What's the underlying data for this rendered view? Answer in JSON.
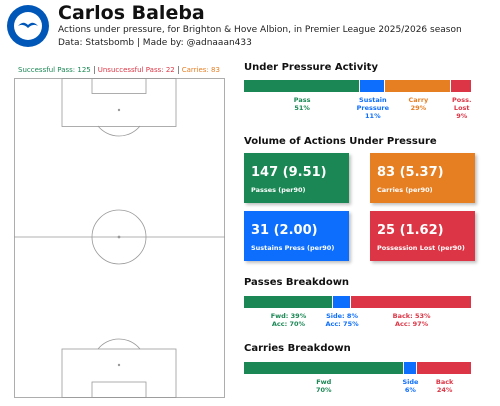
{
  "header": {
    "title": "Carlos Baleba",
    "subtitle": "Actions under pressure, for Brighton & Hove Albion, in Premier League 2025/2026 season",
    "credit": "Data: Statsbomb | Made by: @adnaaan433"
  },
  "pitch": {
    "legend": [
      {
        "label": "Successful Pass: 125",
        "color": "#1a8754"
      },
      {
        "label": "Unsuccessful Pass: 22",
        "color": "#dc3545"
      },
      {
        "label": "Carries: 83",
        "color": "#e67e22"
      }
    ]
  },
  "chart_data": [
    {
      "type": "bar",
      "orientation": "horizontal",
      "stacked": true,
      "title": "Under Pressure Activity",
      "categories": [
        "Pass",
        "Sustain Pressure",
        "Carry",
        "Poss. Lost"
      ],
      "values": [
        51,
        11,
        29,
        9
      ],
      "value_labels": [
        "51%",
        "11%",
        "29%",
        "9%"
      ],
      "colors": [
        "#1a8754",
        "#0d6efd",
        "#e67e22",
        "#dc3545"
      ]
    },
    {
      "type": "bar",
      "orientation": "horizontal",
      "stacked": true,
      "title": "Passes Breakdown",
      "values": [
        39,
        8,
        53
      ],
      "value_labels": [
        "Fwd: 39%",
        "Side: 8%",
        "Back: 53%"
      ],
      "accuracy_labels": [
        "Acc: 70%",
        "Acc: 75%",
        "Acc: 97%"
      ],
      "colors": [
        "#1a8754",
        "#0d6efd",
        "#dc3545"
      ]
    },
    {
      "type": "bar",
      "orientation": "horizontal",
      "stacked": true,
      "title": "Carries Breakdown",
      "categories": [
        "Fwd",
        "Side",
        "Back"
      ],
      "values": [
        70,
        6,
        24
      ],
      "value_labels": [
        "70%",
        "6%",
        "24%"
      ],
      "colors": [
        "#1a8754",
        "#0d6efd",
        "#dc3545"
      ]
    }
  ],
  "cards": {
    "title": "Volume of Actions Under Pressure",
    "items": [
      {
        "value": "147 (9.51)",
        "label": "Passes (per90)",
        "color": "#1a8754"
      },
      {
        "value": "83 (5.37)",
        "label": "Carries (per90)",
        "color": "#e67e22"
      },
      {
        "value": "31 (2.00)",
        "label": "Sustains Press (per90)",
        "color": "#0d6efd"
      },
      {
        "value": "25 (1.62)",
        "label": "Possession Lost (per90)",
        "color": "#dc3545"
      }
    ]
  }
}
